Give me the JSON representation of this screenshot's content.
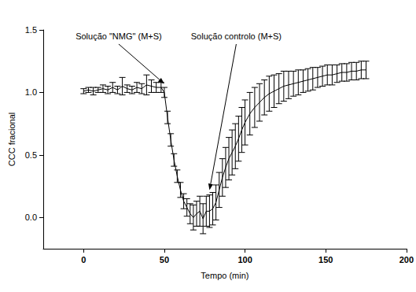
{
  "chart_data": {
    "type": "line",
    "x_label": "Tempo (min)",
    "y_label": "CCC fracional",
    "xlim": [
      -25,
      200
    ],
    "xticks": [
      0,
      50,
      100,
      150,
      200
    ],
    "ylim": [
      -0.25,
      1.5
    ],
    "yticks": [
      {
        "value": 0,
        "label": "0.0"
      },
      0.5,
      {
        "value": 1,
        "label": "1.0"
      },
      {
        "value": 1.5,
        "label": "1.5"
      }
    ],
    "grid": false,
    "color": "#000000",
    "x": [
      0,
      3,
      6,
      9,
      12,
      15,
      18,
      21,
      24,
      27,
      30,
      33,
      36,
      39,
      42,
      45,
      48,
      50,
      52,
      54,
      56,
      58,
      60,
      62,
      64,
      66,
      68,
      70,
      72,
      74,
      76,
      78,
      80,
      82,
      84,
      86,
      88,
      90,
      92,
      94,
      96,
      98,
      100,
      103,
      106,
      109,
      112,
      115,
      118,
      121,
      124,
      127,
      130,
      133,
      136,
      139,
      142,
      145,
      148,
      151,
      154,
      157,
      160,
      163,
      166,
      169,
      172,
      175
    ],
    "values": [
      1.01,
      1.02,
      1.01,
      1.02,
      1.03,
      1.02,
      1.04,
      1.02,
      1.05,
      1.03,
      1.02,
      1.04,
      1.03,
      1.06,
      1.05,
      1.04,
      1.04,
      1.0,
      0.8,
      0.62,
      0.46,
      0.33,
      0.22,
      0.13,
      0.08,
      0.03,
      0.0,
      0.03,
      0.05,
      -0.01,
      0.05,
      0.05,
      0.07,
      0.12,
      0.22,
      0.32,
      0.4,
      0.47,
      0.52,
      0.57,
      0.63,
      0.7,
      0.76,
      0.83,
      0.88,
      0.92,
      0.96,
      0.99,
      1.01,
      1.03,
      1.05,
      1.06,
      1.07,
      1.08,
      1.09,
      1.1,
      1.11,
      1.12,
      1.13,
      1.14,
      1.14,
      1.15,
      1.16,
      1.16,
      1.17,
      1.17,
      1.18,
      1.18
    ],
    "errors": [
      0.02,
      0.02,
      0.03,
      0.02,
      0.03,
      0.03,
      0.04,
      0.03,
      0.07,
      0.03,
      0.03,
      0.04,
      0.04,
      0.08,
      0.05,
      0.04,
      0.04,
      0.04,
      0.05,
      0.05,
      0.05,
      0.05,
      0.06,
      0.06,
      0.07,
      0.08,
      0.1,
      0.1,
      0.12,
      0.12,
      0.12,
      0.13,
      0.13,
      0.14,
      0.14,
      0.15,
      0.16,
      0.17,
      0.18,
      0.18,
      0.18,
      0.18,
      0.18,
      0.17,
      0.16,
      0.15,
      0.14,
      0.14,
      0.13,
      0.12,
      0.12,
      0.11,
      0.1,
      0.1,
      0.09,
      0.09,
      0.09,
      0.08,
      0.08,
      0.08,
      0.08,
      0.07,
      0.07,
      0.07,
      0.07,
      0.07,
      0.07,
      0.07
    ],
    "annotations": [
      {
        "text": "Solução \"NMG\" (M+S)",
        "x": 50,
        "y": 1.05
      },
      {
        "text": "Solução controlo (M+S)",
        "x": 78,
        "y": 0.2
      }
    ]
  }
}
